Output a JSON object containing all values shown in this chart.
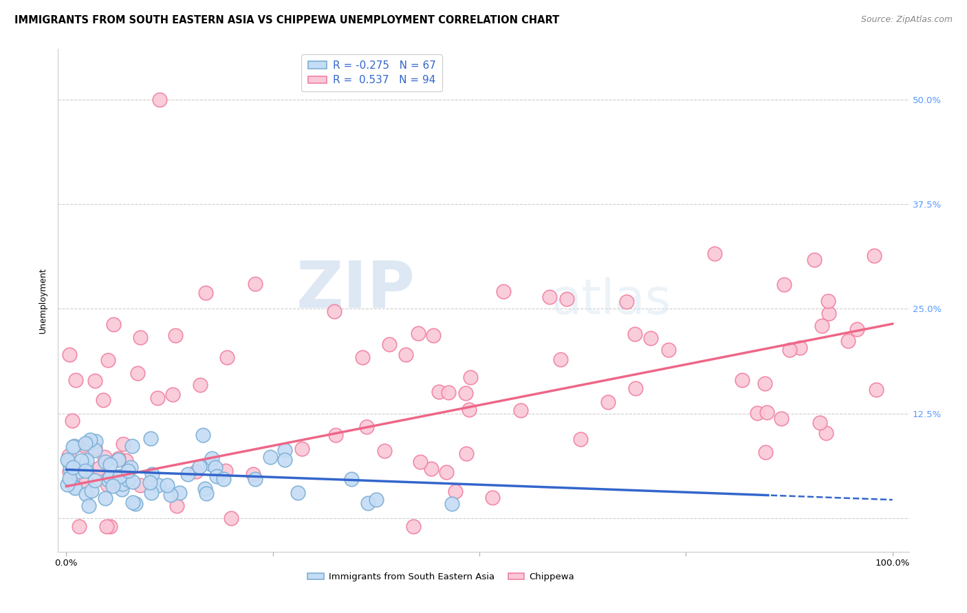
{
  "title": "IMMIGRANTS FROM SOUTH EASTERN ASIA VS CHIPPEWA UNEMPLOYMENT CORRELATION CHART",
  "source": "Source: ZipAtlas.com",
  "ylabel": "Unemployment",
  "ytick_labels": [
    "",
    "12.5%",
    "25.0%",
    "37.5%",
    "50.0%"
  ],
  "ytick_vals": [
    0,
    0.125,
    0.25,
    0.375,
    0.5
  ],
  "xlim": [
    -0.01,
    1.02
  ],
  "ylim": [
    -0.04,
    0.56
  ],
  "watermark_zip": "ZIP",
  "watermark_atlas": "atlas",
  "legend_label1": "R = -0.275   N = 67",
  "legend_label2": "R =  0.537   N = 94",
  "series1_face": "#c5dcf5",
  "series1_edge": "#7bafd4",
  "series2_face": "#fac8d8",
  "series2_edge": "#f080a0",
  "line1_color": "#3366cc",
  "line2_color": "#ee6688",
  "line1_y0": 0.058,
  "line1_y1": 0.022,
  "line1_solid_xend": 0.85,
  "line2_y0": 0.038,
  "line2_y1": 0.232,
  "background_color": "#ffffff",
  "grid_color": "#cccccc",
  "title_fontsize": 10.5,
  "source_fontsize": 9,
  "axis_label_fontsize": 9,
  "tick_fontsize": 9.5,
  "legend_fontsize": 11,
  "seed": 99,
  "n1": 67,
  "n2": 94,
  "bottom_legend_label1": "Immigrants from South Eastern Asia",
  "bottom_legend_label2": "Chippewa"
}
